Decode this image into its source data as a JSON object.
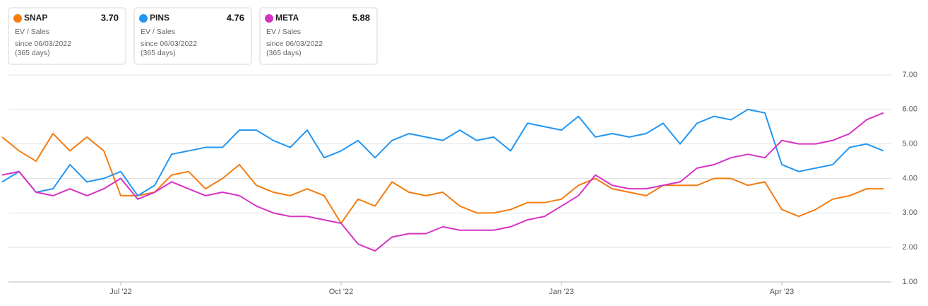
{
  "chart_data": {
    "type": "line",
    "card_lines": [
      "EV / Sales",
      "since 06/03/2022",
      "(365 days)"
    ],
    "categories": [
      null,
      null,
      null,
      null,
      null,
      null,
      null,
      "Jul '22",
      null,
      null,
      null,
      null,
      null,
      null,
      null,
      null,
      null,
      null,
      null,
      null,
      "Oct '22",
      null,
      null,
      null,
      null,
      null,
      null,
      null,
      null,
      null,
      null,
      null,
      null,
      "Jan '23",
      null,
      null,
      null,
      null,
      null,
      null,
      null,
      null,
      null,
      null,
      null,
      null,
      "Apr '23",
      null,
      null,
      null,
      null,
      null,
      null
    ],
    "series": [
      {
        "name": "SNAP",
        "color": "#f47c0f",
        "last": {
          "value": 3.7,
          "label": "3.70"
        },
        "values": [
          5.2,
          4.8,
          4.5,
          5.3,
          4.8,
          5.2,
          4.8,
          3.5,
          3.5,
          3.6,
          4.1,
          4.2,
          3.7,
          4.0,
          4.4,
          3.8,
          3.6,
          3.5,
          3.7,
          3.5,
          2.7,
          3.4,
          3.2,
          3.9,
          3.6,
          3.5,
          3.6,
          3.2,
          3.0,
          3.0,
          3.1,
          3.3,
          3.3,
          3.4,
          3.8,
          4.0,
          3.7,
          3.6,
          3.5,
          3.8,
          3.8,
          3.8,
          4.0,
          4.0,
          3.8,
          3.9,
          3.1,
          2.9,
          3.1,
          3.4,
          3.5,
          3.7,
          3.7
        ]
      },
      {
        "name": "PINS",
        "color": "#2196f3",
        "last": {
          "value": 4.76,
          "label": "4.76"
        },
        "values": [
          3.9,
          4.2,
          3.6,
          3.7,
          4.4,
          3.9,
          4.0,
          4.2,
          3.5,
          3.8,
          4.7,
          4.8,
          4.9,
          4.9,
          5.4,
          5.4,
          5.1,
          4.9,
          5.4,
          4.6,
          4.8,
          5.1,
          4.6,
          5.1,
          5.3,
          5.2,
          5.1,
          5.4,
          5.1,
          5.2,
          4.8,
          5.6,
          5.5,
          5.4,
          5.8,
          5.2,
          5.3,
          5.2,
          5.3,
          5.6,
          5.0,
          5.6,
          5.8,
          5.7,
          6.0,
          5.9,
          4.4,
          4.2,
          4.3,
          4.4,
          4.9,
          5.0,
          4.8
        ]
      },
      {
        "name": "META",
        "color": "#d633c6",
        "last": {
          "value": 5.88,
          "label": "5.88"
        },
        "values": [
          4.1,
          4.2,
          3.6,
          3.5,
          3.7,
          3.5,
          3.7,
          4.0,
          3.4,
          3.6,
          3.9,
          3.7,
          3.5,
          3.6,
          3.5,
          3.2,
          3.0,
          2.9,
          2.9,
          2.8,
          2.7,
          2.1,
          1.9,
          2.3,
          2.4,
          2.4,
          2.6,
          2.5,
          2.5,
          2.5,
          2.6,
          2.8,
          2.9,
          3.2,
          3.5,
          4.1,
          3.8,
          3.7,
          3.7,
          3.8,
          3.9,
          4.3,
          4.4,
          4.6,
          4.7,
          4.6,
          5.1,
          5.0,
          5.0,
          5.1,
          5.3,
          5.7,
          5.9
        ]
      }
    ],
    "ylim": [
      1,
      7
    ],
    "yticks": [
      {
        "value": 1,
        "label": "1.00"
      },
      {
        "value": 2,
        "label": "2.00"
      },
      {
        "value": 3,
        "label": "3.00"
      },
      {
        "value": 4,
        "label": "4.00"
      },
      {
        "value": 5,
        "label": "5.00"
      },
      {
        "value": 6,
        "label": "6.00"
      },
      {
        "value": 7,
        "label": "7.00"
      }
    ],
    "grid": true
  }
}
